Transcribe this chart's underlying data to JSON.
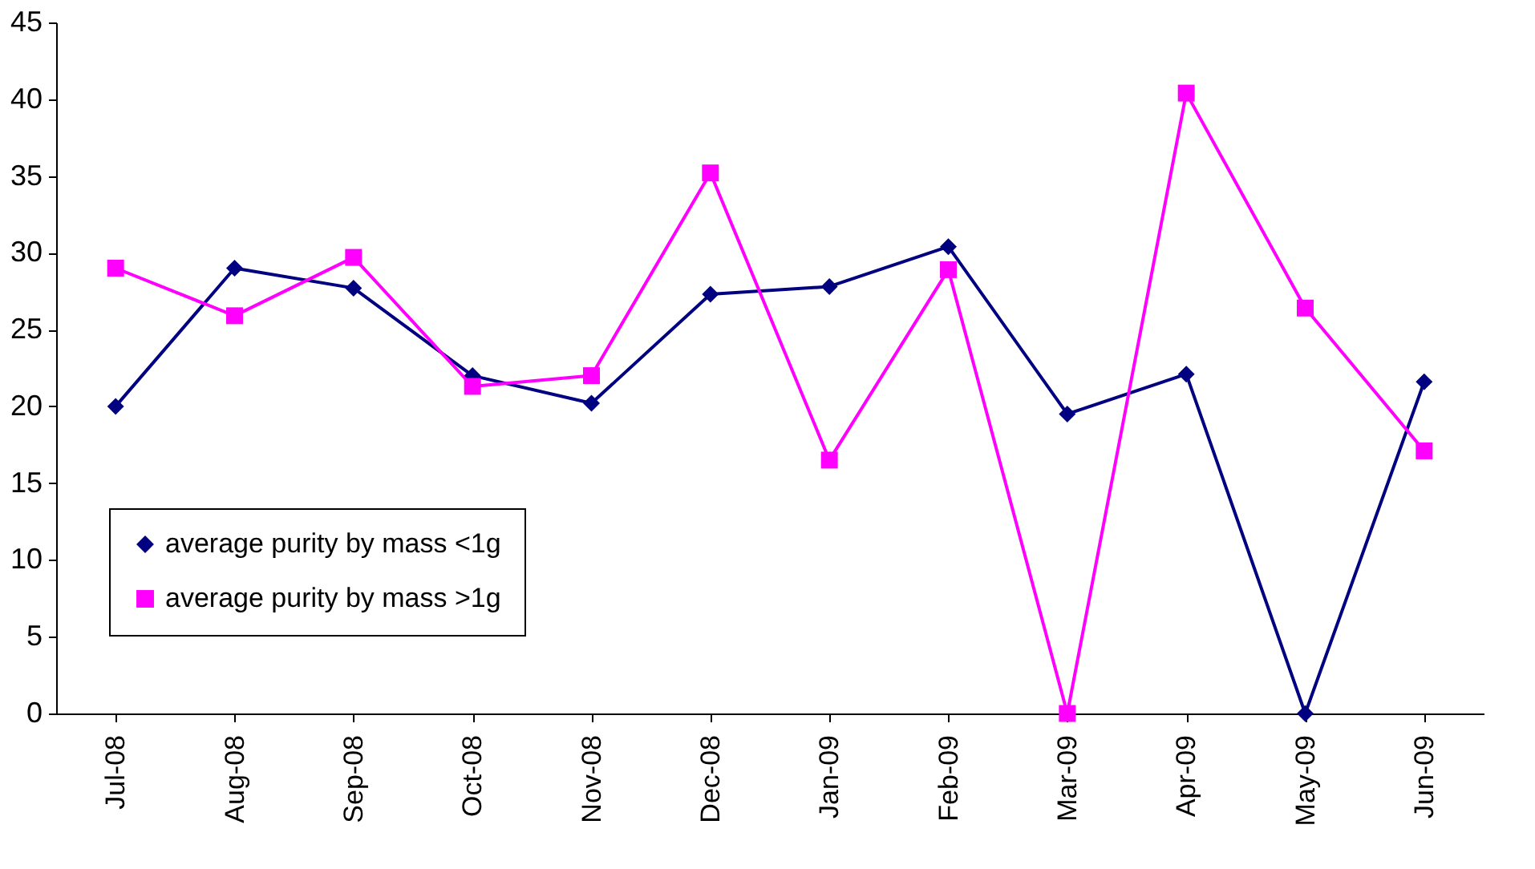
{
  "chart_data": {
    "type": "line",
    "categories": [
      "Jul-08",
      "Aug-08",
      "Sep-08",
      "Oct-08",
      "Nov-08",
      "Dec-08",
      "Jan-09",
      "Feb-09",
      "Mar-09",
      "Apr-09",
      "May-09",
      "Jun-09"
    ],
    "series": [
      {
        "name": "average purity by mass <1g",
        "color": "#000080",
        "marker": "diamond",
        "values": [
          20,
          29,
          27.7,
          22,
          20.2,
          27.3,
          27.8,
          30.4,
          19.5,
          22.1,
          0,
          21.6
        ]
      },
      {
        "name": "average purity by mass >1g",
        "color": "#ff00ff",
        "marker": "square",
        "values": [
          29,
          25.9,
          29.7,
          21.3,
          22,
          35.2,
          16.5,
          28.9,
          0,
          40.4,
          26.4,
          17.1
        ]
      }
    ],
    "ylim": [
      0,
      45
    ],
    "yticks": [
      0,
      5,
      10,
      15,
      20,
      25,
      30,
      35,
      40,
      45
    ],
    "grid": false,
    "legend": "bottom left",
    "line_style": "solid"
  }
}
